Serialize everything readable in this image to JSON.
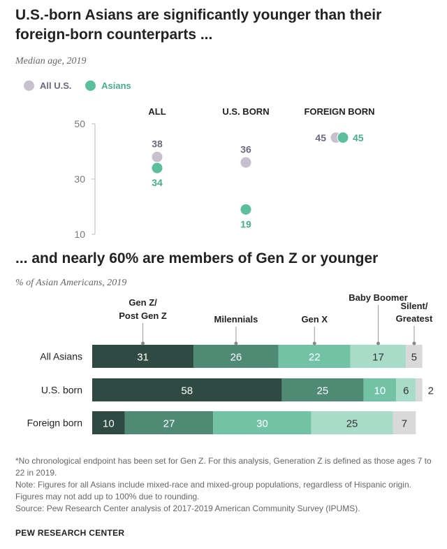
{
  "colors": {
    "all_us": "#c6c1cc",
    "asians": "#5bbf9e",
    "all_us_label": "#6c6880",
    "asians_label": "#4aab8c",
    "gen_z": "#2e4a42",
    "millennials": "#4f8a75",
    "gen_x": "#72c3a6",
    "boomer": "#a9dcc8",
    "silent": "#d9d9d9"
  },
  "chart_data": [
    {
      "type": "scatter",
      "title": "U.S.-born Asians are significantly younger than their foreign-born counterparts ...",
      "subtitle": "Median age, 2019",
      "categories": [
        "ALL",
        "U.S. BORN",
        "FOREIGN BORN"
      ],
      "series": [
        {
          "name": "All U.S.",
          "values": [
            38,
            36,
            45
          ],
          "labels": [
            "38",
            "36",
            "45"
          ]
        },
        {
          "name": "Asians",
          "values": [
            34,
            19,
            45
          ],
          "labels": [
            "34",
            "19",
            "45"
          ]
        }
      ],
      "yticks": [
        "50",
        "30",
        "10"
      ],
      "ylim": [
        10,
        50
      ],
      "legend_position": "top-left"
    },
    {
      "type": "bar",
      "stacked": true,
      "orientation": "horizontal",
      "title": "... and nearly 60% are members of Gen Z or younger",
      "subtitle": "% of Asian Americans, 2019",
      "categories": [
        "All Asians",
        "U.S. born",
        "Foreign born"
      ],
      "series": [
        {
          "name": "Gen Z/ Post Gen Z",
          "label_lines": [
            "Gen Z/",
            "Post Gen Z"
          ],
          "values": [
            31,
            58,
            10
          ],
          "labels": [
            "31",
            "58",
            "10"
          ]
        },
        {
          "name": "Milennials",
          "label_lines": [
            "Milennials"
          ],
          "values": [
            26,
            25,
            27
          ],
          "labels": [
            "26",
            "25",
            "27"
          ]
        },
        {
          "name": "Gen X",
          "label_lines": [
            "Gen X"
          ],
          "values": [
            22,
            10,
            30
          ],
          "labels": [
            "22",
            "10",
            "30"
          ]
        },
        {
          "name": "Baby Boomer",
          "label_lines": [
            "Baby Boomer"
          ],
          "values": [
            17,
            6,
            25
          ],
          "labels": [
            "17",
            "6",
            "25"
          ]
        },
        {
          "name": "Silent/ Greatest",
          "label_lines": [
            "Silent/",
            "Greatest"
          ],
          "values": [
            5,
            2,
            7
          ],
          "labels": [
            "5",
            "2",
            "7"
          ]
        }
      ],
      "xlim": [
        0,
        100
      ]
    }
  ],
  "notes": {
    "gen_z_note": "*No chronological endpoint has been set for Gen Z. For this analysis, Generation Z is defined as those ages 7 to 22 in 2019.",
    "note": "Note: Figures for all Asians include mixed-race and mixed-group populations, regardless of Hispanic origin. Figures may not add up to 100% due to rounding.",
    "source": "Source: Pew Research Center analysis of 2017-2019 American Community Survey (IPUMS).",
    "org": "PEW RESEARCH CENTER"
  }
}
